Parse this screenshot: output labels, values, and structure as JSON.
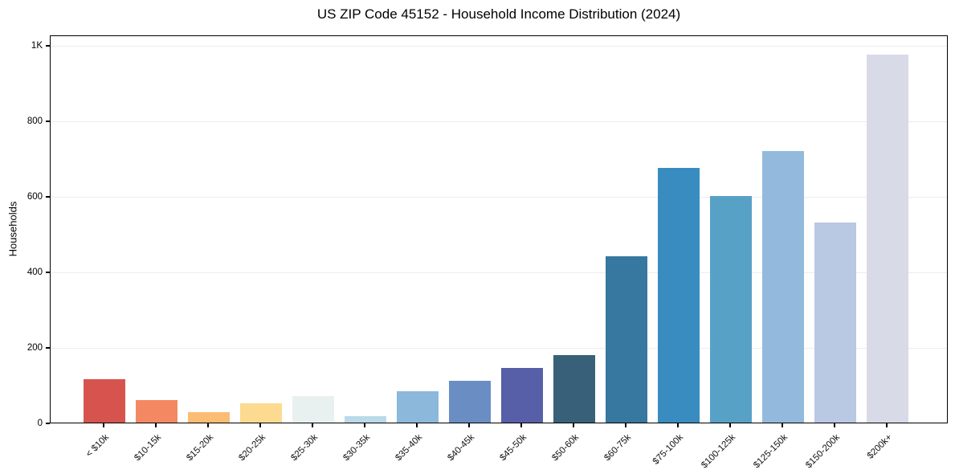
{
  "chart_data": {
    "type": "bar",
    "title": "US ZIP Code 45152 - Household Income Distribution (2024)",
    "xlabel": "",
    "ylabel": "Households",
    "categories": [
      "< $10k",
      "$10-15k",
      "$15-20k",
      "$20-25k",
      "$25-30k",
      "$30-35k",
      "$35-40k",
      "$40-45k",
      "$45-50k",
      "$50-60k",
      "$60-75k",
      "$75-100k",
      "$100-125k",
      "$125-150k",
      "$150-200k",
      "$200k+"
    ],
    "values": [
      115,
      60,
      27,
      52,
      70,
      17,
      82,
      110,
      145,
      178,
      440,
      675,
      600,
      720,
      530,
      975
    ],
    "bar_colors": [
      "#d7544e",
      "#f48862",
      "#fbbc74",
      "#fcda90",
      "#e9f1f0",
      "#badaea",
      "#8bb8db",
      "#6a8dc4",
      "#575fa8",
      "#386179",
      "#36789f",
      "#388cbf",
      "#58a1c6",
      "#93badd",
      "#b9c8e3",
      "#d8dae8"
    ],
    "ylim": [
      0,
      1027
    ],
    "yticks": [
      0,
      200,
      400,
      600,
      800,
      1000
    ],
    "ytick_labels": [
      "0",
      "200",
      "400",
      "600",
      "800",
      "1K"
    ],
    "grid": "horizontal",
    "gridline_color": "#ececec",
    "background": "#ffffff",
    "spine_color": "#000000",
    "legend": "none"
  }
}
